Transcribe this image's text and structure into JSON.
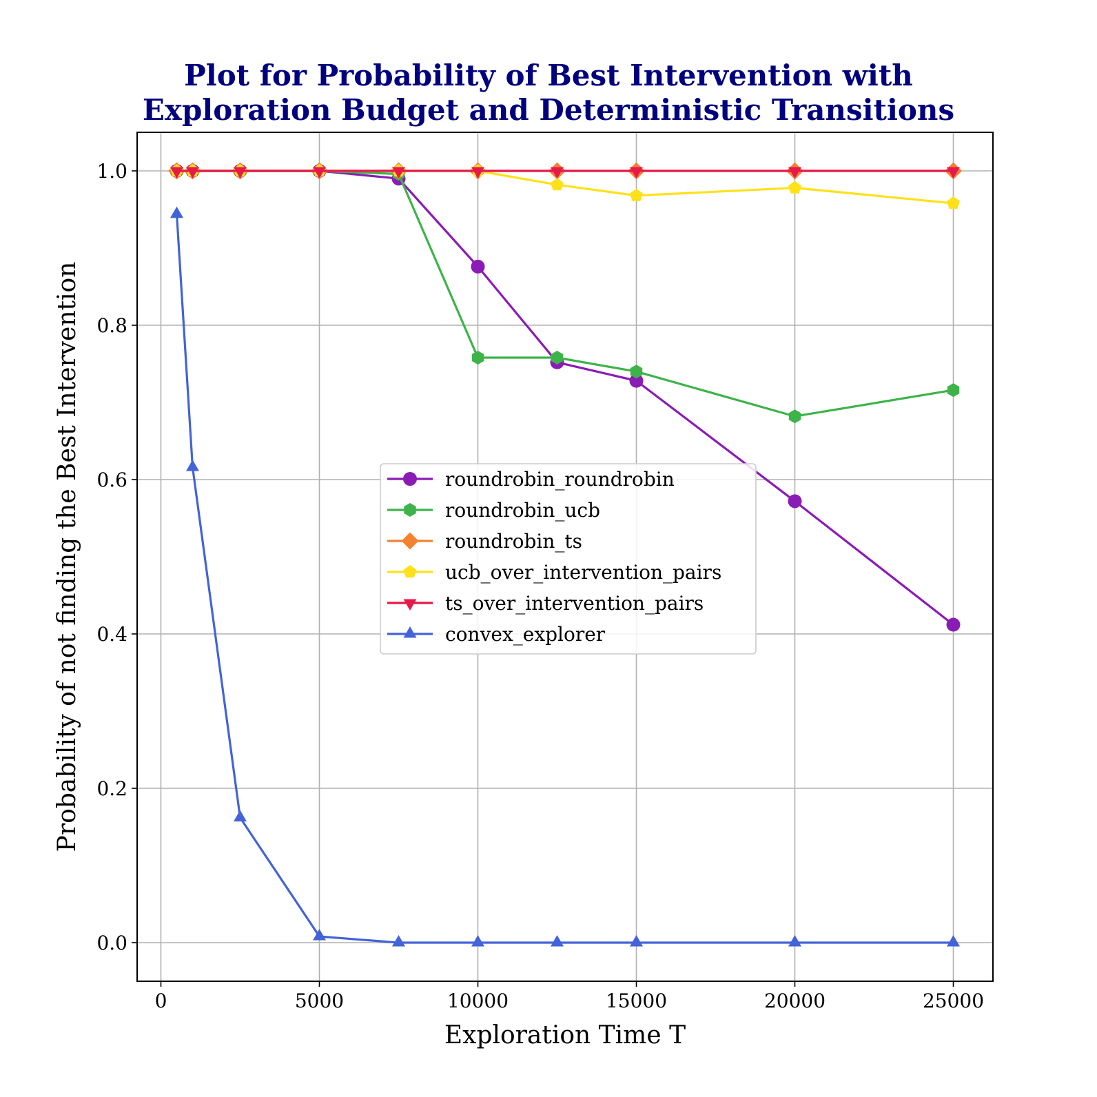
{
  "chart_data": {
    "type": "line",
    "title": [
      "Plot for Probability of Best Intervention with",
      "Exploration Budget and Deterministic Transitions"
    ],
    "xlabel": "Exploration Time T",
    "ylabel": "Probability of not finding the Best Intervention",
    "xlim": [
      -750,
      26250
    ],
    "ylim": [
      -0.05,
      1.05
    ],
    "xticks": [
      0,
      5000,
      10000,
      15000,
      20000,
      25000
    ],
    "xtick_labels": [
      "0",
      "5000",
      "10000",
      "15000",
      "20000",
      "25000"
    ],
    "yticks": [
      0.0,
      0.2,
      0.4,
      0.6,
      0.8,
      1.0
    ],
    "ytick_labels": [
      "0.0",
      "0.2",
      "0.4",
      "0.6",
      "0.8",
      "1.0"
    ],
    "grid": true,
    "legend_position": "center",
    "x": [
      500,
      1000,
      2500,
      5000,
      7500,
      10000,
      12500,
      15000,
      20000,
      25000
    ],
    "series": [
      {
        "name": "roundrobin_roundrobin",
        "color": "#8b1bb5",
        "marker": "circle",
        "values": [
          1.0,
          1.0,
          1.0,
          1.0,
          0.99,
          0.876,
          0.752,
          0.728,
          0.572,
          0.412
        ]
      },
      {
        "name": "roundrobin_ucb",
        "color": "#3db34a",
        "marker": "hexagon",
        "values": [
          1.0,
          1.0,
          1.0,
          1.0,
          0.996,
          0.758,
          0.758,
          0.74,
          0.682,
          0.716
        ]
      },
      {
        "name": "roundrobin_ts",
        "color": "#f58231",
        "marker": "diamond",
        "values": [
          1.0,
          1.0,
          1.0,
          1.0,
          1.0,
          1.0,
          1.0,
          1.0,
          1.0,
          1.0
        ]
      },
      {
        "name": "ucb_over_intervention_pairs",
        "color": "#ffe119",
        "marker": "pentagon",
        "values": [
          1.0,
          1.0,
          1.0,
          1.0,
          1.0,
          1.0,
          0.982,
          0.968,
          0.978,
          0.958
        ]
      },
      {
        "name": "ts_over_intervention_pairs",
        "color": "#e6194b",
        "marker": "triangle-down",
        "values": [
          1.0,
          1.0,
          1.0,
          1.0,
          1.0,
          1.0,
          1.0,
          1.0,
          1.0,
          1.0
        ]
      },
      {
        "name": "convex_explorer",
        "color": "#4363d8",
        "marker": "triangle-up",
        "values": [
          0.944,
          0.616,
          0.162,
          0.008,
          0.0,
          0.0,
          0.0,
          0.0,
          0.0,
          0.0
        ]
      }
    ]
  }
}
